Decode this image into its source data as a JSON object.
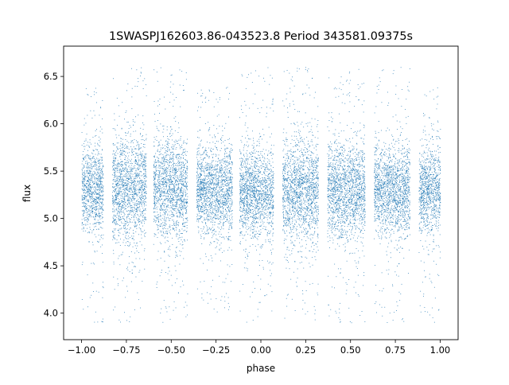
{
  "chart_data": {
    "type": "scatter",
    "title": "1SWASPJ162603.86-043523.8 Period 343581.09375s",
    "xlabel": "phase",
    "ylabel": "flux",
    "xlim": [
      -1.1,
      1.1
    ],
    "ylim": [
      3.72,
      6.82
    ],
    "x_ticks": [
      -1.0,
      -0.75,
      -0.5,
      -0.25,
      0.0,
      0.25,
      0.5,
      0.75,
      1.0
    ],
    "x_tick_labels": [
      "−1.00",
      "−0.75",
      "−0.50",
      "−0.25",
      "0.00",
      "0.25",
      "0.50",
      "0.75",
      "1.00"
    ],
    "y_ticks": [
      4.0,
      4.5,
      5.0,
      5.5,
      6.0,
      6.5
    ],
    "y_tick_labels": [
      "4.0",
      "4.5",
      "5.0",
      "5.5",
      "6.0",
      "6.5"
    ],
    "grid": false,
    "legend": "none",
    "point_color": "#1f77b4",
    "series": [
      {
        "values": "dense phase-folded light curve; points grouped in observation bands",
        "bands": [
          {
            "x_range": [
              -1.0,
              -0.88
            ],
            "y_core": [
              4.85,
              5.75
            ],
            "y_spread": [
              3.9,
              6.4
            ]
          },
          {
            "x_range": [
              -0.83,
              -0.64
            ],
            "y_core": [
              4.75,
              5.85
            ],
            "y_spread": [
              3.9,
              6.6
            ]
          },
          {
            "x_range": [
              -0.6,
              -0.41
            ],
            "y_core": [
              4.8,
              5.85
            ],
            "y_spread": [
              3.9,
              6.6
            ]
          },
          {
            "x_range": [
              -0.36,
              -0.16
            ],
            "y_core": [
              4.85,
              5.75
            ],
            "y_spread": [
              4.0,
              6.4
            ]
          },
          {
            "x_range": [
              -0.12,
              0.07
            ],
            "y_core": [
              4.8,
              5.75
            ],
            "y_spread": [
              3.9,
              6.6
            ]
          },
          {
            "x_range": [
              0.12,
              0.32
            ],
            "y_core": [
              4.75,
              5.85
            ],
            "y_spread": [
              3.9,
              6.6
            ]
          },
          {
            "x_range": [
              0.37,
              0.58
            ],
            "y_core": [
              4.8,
              5.8
            ],
            "y_spread": [
              3.9,
              6.6
            ]
          },
          {
            "x_range": [
              0.63,
              0.83
            ],
            "y_core": [
              4.85,
              5.75
            ],
            "y_spread": [
              3.9,
              6.6
            ]
          },
          {
            "x_range": [
              0.88,
              1.0
            ],
            "y_core": [
              4.85,
              5.75
            ],
            "y_spread": [
              3.9,
              6.4
            ]
          }
        ]
      }
    ]
  }
}
